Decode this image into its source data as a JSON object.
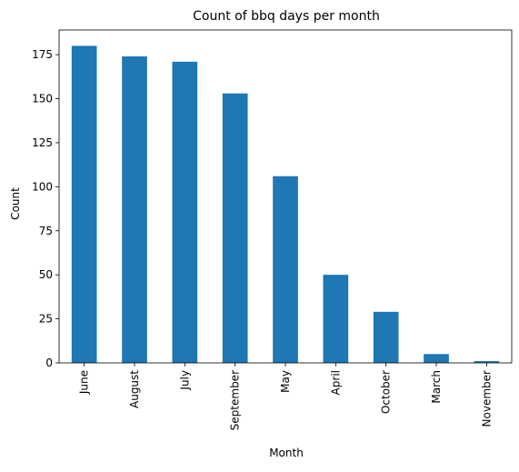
{
  "chart_data": {
    "type": "bar",
    "title": "Count of bbq days per month",
    "xlabel": "Month",
    "ylabel": "Count",
    "categories": [
      "June",
      "August",
      "July",
      "September",
      "May",
      "April",
      "October",
      "March",
      "November"
    ],
    "values": [
      180,
      174,
      171,
      153,
      106,
      50,
      29,
      5,
      1
    ],
    "ylim": [
      0,
      189
    ],
    "yticks": [
      0,
      25,
      50,
      75,
      100,
      125,
      150,
      175
    ],
    "bar_color": "#1f77b4",
    "grid": false,
    "legend": "none"
  }
}
